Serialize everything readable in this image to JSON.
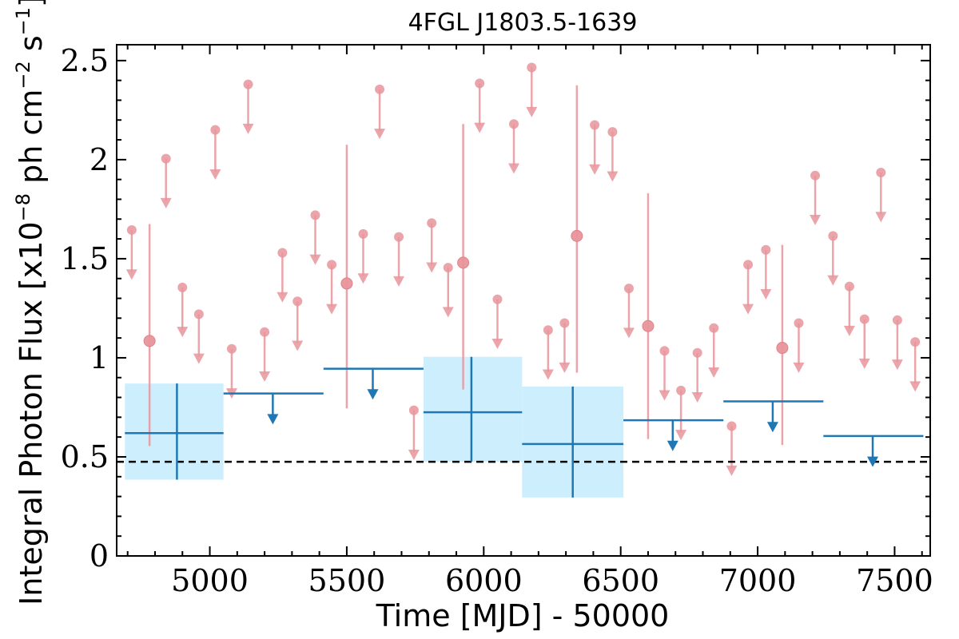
{
  "chart_data": {
    "type": "scatter",
    "title": "4FGL J1803.5-1639",
    "xlabel": "Time [MJD] - 50000",
    "ylabel": "Integral Photon Flux [x10",
    "ylabel_exp": "−8",
    "ylabel_mid": " ph cm",
    "ylabel_exp2": "−2",
    "ylabel_end": " s",
    "ylabel_exp3": "−1",
    "ylabel_close": "]",
    "xlim": [
      4660,
      7630
    ],
    "ylim": [
      0,
      2.58
    ],
    "x_ticks": [
      5000,
      5500,
      6000,
      6500,
      7000,
      7500
    ],
    "x_tick_labels": [
      "5000",
      "5500",
      "6000",
      "6500",
      "7000",
      "7500"
    ],
    "y_ticks": [
      0,
      0.5,
      1,
      1.5,
      2,
      2.5
    ],
    "y_tick_labels": [
      "0",
      "0.5",
      "1",
      "1.5",
      "2",
      "2.5"
    ],
    "grid": false,
    "colors": {
      "fine_bins": "#e8959b",
      "coarse_bins": "#1f77b4",
      "error_band": "#cdeefd",
      "reference_line": "#000000"
    },
    "reference_line": {
      "y": 0.475,
      "style": "dashed"
    },
    "fine_detections": [
      {
        "x": 4780,
        "y": 1.085,
        "yerr_low": 0.53,
        "yerr_high": 0.59
      },
      {
        "x": 5500,
        "y": 1.375,
        "yerr_low": 0.63,
        "yerr_high": 0.7
      },
      {
        "x": 5925,
        "y": 1.48,
        "yerr_low": 0.64,
        "yerr_high": 0.7
      },
      {
        "x": 6340,
        "y": 1.615,
        "yerr_low": 0.69,
        "yerr_high": 0.76
      },
      {
        "x": 6600,
        "y": 1.16,
        "yerr_low": 0.57,
        "yerr_high": 0.67
      },
      {
        "x": 7090,
        "y": 1.05,
        "yerr_low": 0.49,
        "yerr_high": 0.52
      }
    ],
    "fine_upper_limits": [
      {
        "x": 4715,
        "y": 1.645
      },
      {
        "x": 4840,
        "y": 2.005
      },
      {
        "x": 4900,
        "y": 1.355
      },
      {
        "x": 4960,
        "y": 1.22
      },
      {
        "x": 5020,
        "y": 2.15
      },
      {
        "x": 5080,
        "y": 1.045
      },
      {
        "x": 5140,
        "y": 2.38
      },
      {
        "x": 5200,
        "y": 1.13
      },
      {
        "x": 5265,
        "y": 1.53
      },
      {
        "x": 5320,
        "y": 1.285
      },
      {
        "x": 5385,
        "y": 1.72
      },
      {
        "x": 5445,
        "y": 1.47
      },
      {
        "x": 5560,
        "y": 1.625
      },
      {
        "x": 5620,
        "y": 2.355
      },
      {
        "x": 5690,
        "y": 1.61
      },
      {
        "x": 5745,
        "y": 0.735
      },
      {
        "x": 5810,
        "y": 1.68
      },
      {
        "x": 5870,
        "y": 1.455
      },
      {
        "x": 5985,
        "y": 2.385
      },
      {
        "x": 6050,
        "y": 1.295
      },
      {
        "x": 6110,
        "y": 2.18
      },
      {
        "x": 6175,
        "y": 2.465
      },
      {
        "x": 6235,
        "y": 1.14
      },
      {
        "x": 6295,
        "y": 1.175
      },
      {
        "x": 6405,
        "y": 2.175
      },
      {
        "x": 6470,
        "y": 2.14
      },
      {
        "x": 6530,
        "y": 1.35
      },
      {
        "x": 6660,
        "y": 1.035
      },
      {
        "x": 6720,
        "y": 0.835
      },
      {
        "x": 6780,
        "y": 1.025
      },
      {
        "x": 6840,
        "y": 1.15
      },
      {
        "x": 6905,
        "y": 0.655
      },
      {
        "x": 6965,
        "y": 1.47
      },
      {
        "x": 7030,
        "y": 1.545
      },
      {
        "x": 7150,
        "y": 1.175
      },
      {
        "x": 7210,
        "y": 1.92
      },
      {
        "x": 7275,
        "y": 1.615
      },
      {
        "x": 7335,
        "y": 1.36
      },
      {
        "x": 7390,
        "y": 1.195
      },
      {
        "x": 7450,
        "y": 1.935
      },
      {
        "x": 7510,
        "y": 1.19
      },
      {
        "x": 7575,
        "y": 1.08
      }
    ],
    "coarse_detections": [
      {
        "x": 4880,
        "x_low": 4690,
        "x_high": 5050,
        "y": 0.62,
        "y_low": 0.385,
        "y_high": 0.87
      },
      {
        "x": 5955,
        "x_low": 5780,
        "x_high": 6140,
        "y": 0.725,
        "y_low": 0.475,
        "y_high": 1.005
      },
      {
        "x": 6325,
        "x_low": 6140,
        "x_high": 6510,
        "y": 0.565,
        "y_low": 0.295,
        "y_high": 0.855
      }
    ],
    "coarse_upper_limits": [
      {
        "x": 5230,
        "x_low": 5050,
        "x_high": 5415,
        "y": 0.82
      },
      {
        "x": 5595,
        "x_low": 5415,
        "x_high": 5780,
        "y": 0.945
      },
      {
        "x": 6690,
        "x_low": 6510,
        "x_high": 6875,
        "y": 0.685
      },
      {
        "x": 7055,
        "x_low": 6875,
        "x_high": 7240,
        "y": 0.78
      },
      {
        "x": 7420,
        "x_low": 7240,
        "x_high": 7605,
        "y": 0.605
      }
    ]
  }
}
